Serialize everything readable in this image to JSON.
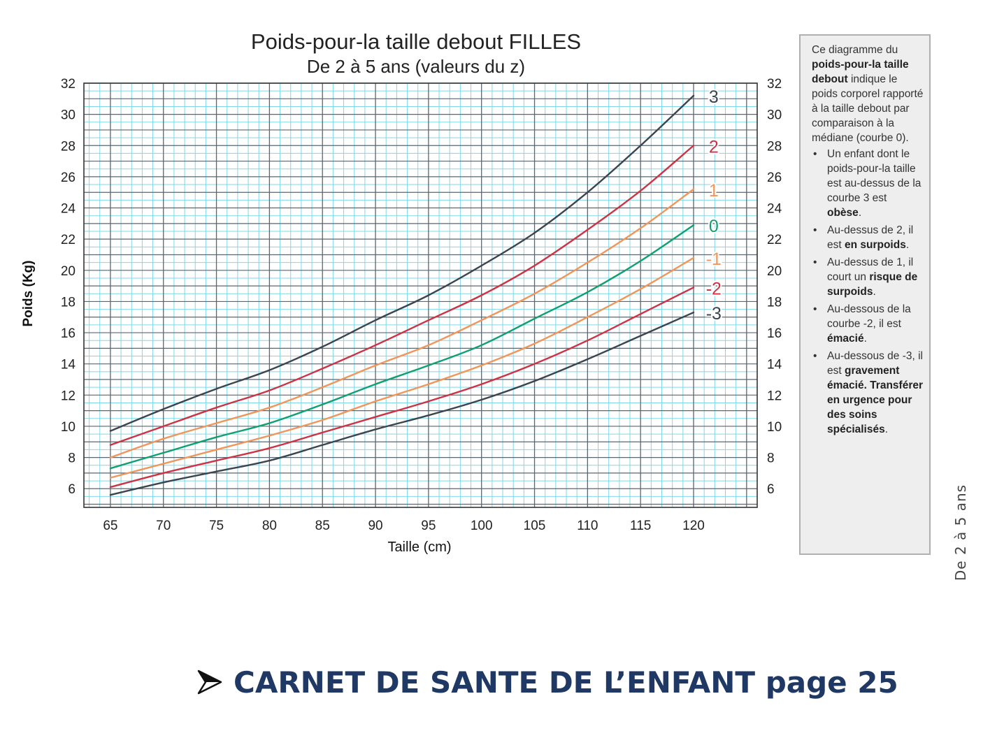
{
  "chart_data": {
    "type": "line",
    "title": "Poids-pour-la taille debout FILLES",
    "subtitle": "De 2 à 5 ans (valeurs du z)",
    "xlabel": "Taille (cm)",
    "ylabel": "Poids (Kg)",
    "xlim": [
      62.5,
      126
    ],
    "ylim": [
      4.8,
      32
    ],
    "x_ticks": [
      65,
      70,
      75,
      80,
      85,
      90,
      95,
      100,
      105,
      110,
      115,
      120
    ],
    "y_ticks_left": [
      6,
      8,
      10,
      12,
      14,
      16,
      18,
      20,
      22,
      24,
      26,
      28,
      30,
      32
    ],
    "y_ticks_right": [
      6,
      8,
      10,
      12,
      14,
      16,
      18,
      20,
      22,
      24,
      26,
      28,
      30,
      32
    ],
    "grid": true,
    "x": [
      65,
      70,
      75,
      80,
      85,
      90,
      95,
      100,
      105,
      110,
      115,
      120
    ],
    "series": [
      {
        "name": "3",
        "color": "#3a4550",
        "values": [
          9.7,
          11.1,
          12.4,
          13.6,
          15.1,
          16.8,
          18.4,
          20.3,
          22.4,
          25.0,
          28.0,
          31.2
        ]
      },
      {
        "name": "2",
        "color": "#cc3344",
        "values": [
          8.8,
          10.0,
          11.2,
          12.3,
          13.7,
          15.2,
          16.8,
          18.4,
          20.3,
          22.6,
          25.1,
          28.0
        ]
      },
      {
        "name": "1",
        "color": "#f0965a",
        "values": [
          8.0,
          9.2,
          10.2,
          11.2,
          12.5,
          13.9,
          15.2,
          16.8,
          18.5,
          20.5,
          22.7,
          25.2
        ]
      },
      {
        "name": "0",
        "color": "#10a070",
        "values": [
          7.3,
          8.3,
          9.3,
          10.2,
          11.4,
          12.7,
          13.9,
          15.2,
          16.9,
          18.6,
          20.6,
          22.9
        ]
      },
      {
        "name": "-1",
        "color": "#f0965a",
        "values": [
          6.7,
          7.6,
          8.5,
          9.4,
          10.4,
          11.6,
          12.7,
          13.9,
          15.3,
          17.0,
          18.8,
          20.8
        ]
      },
      {
        "name": "-2",
        "color": "#cc3344",
        "values": [
          6.1,
          7.0,
          7.8,
          8.6,
          9.6,
          10.6,
          11.6,
          12.7,
          14.0,
          15.5,
          17.2,
          18.9
        ]
      },
      {
        "name": "-3",
        "color": "#3a4550",
        "values": [
          5.6,
          6.4,
          7.1,
          7.8,
          8.8,
          9.8,
          10.7,
          11.7,
          12.9,
          14.3,
          15.8,
          17.3
        ]
      }
    ]
  },
  "infobox": {
    "intro_1": "Ce diagramme du ",
    "intro_bold": "poids-pour-la taille debout",
    "intro_2": " indique le poids corporel rapporté à la taille debout par comparaison à la médiane (courbe 0).",
    "items": [
      {
        "text": "Un enfant dont le poids-pour-la taille est au-dessus de la courbe 3 est ",
        "bold": "obèse",
        "tail": "."
      },
      {
        "text": "Au-dessus de 2, il est ",
        "bold": "en surpoids",
        "tail": "."
      },
      {
        "text": "Au-dessus de 1, il court un ",
        "bold": "risque de surpoids",
        "tail": "."
      },
      {
        "text": "Au-dessous de la courbe -2, il est ",
        "bold": "émacié",
        "tail": "."
      },
      {
        "text": "Au-dessous de -3, il est ",
        "bold": "gravement émacié. Transférer en urgence pour des soins spécialisés",
        "tail": "."
      }
    ]
  },
  "side_label": "De 2 à 5 ans",
  "footer": {
    "text": "CARNET DE SANTE DE L’ENFANT page 25",
    "color": "#1f3864"
  }
}
